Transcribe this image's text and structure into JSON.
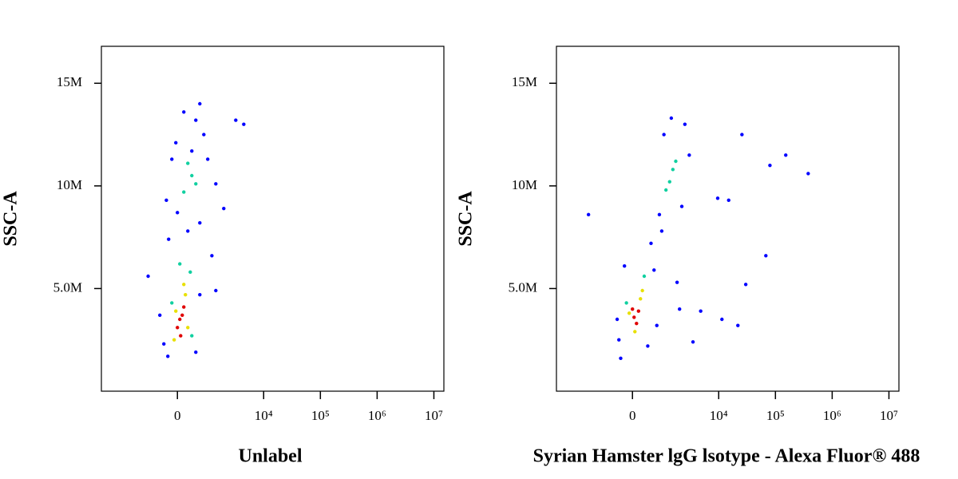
{
  "chart_data": [
    {
      "type": "scatter",
      "xscale": "biexponential",
      "xlabel": "Unlabel",
      "ylabel": "SSC-A",
      "xlim": [
        -6600,
        15000000
      ],
      "ylim": [
        0,
        16800000
      ],
      "xticks": [
        0,
        {
          "value": 10000,
          "label": "10⁴"
        },
        {
          "value": 100000,
          "label": "10⁵"
        },
        {
          "value": 1000000,
          "label": "10⁶"
        },
        {
          "value": 10000000,
          "label": "10⁷"
        }
      ],
      "yticks": [
        {
          "value": 5000000,
          "label": "5.0M"
        },
        {
          "value": 10000000,
          "label": "10M"
        },
        {
          "value": 15000000,
          "label": "15M"
        }
      ],
      "series": [
        {
          "color": "#0000ff",
          "x": [
            -350,
            -469,
            495,
            -241,
            629,
            -220,
            629,
            -39,
            780,
            159,
            495,
            -138,
            947,
            1373,
            1938,
            1150,
            -280,
            263,
            629,
            3200,
            4446,
            -900,
            1373,
            0,
            374
          ],
          "y": [
            2300000,
            3700000,
            1900000,
            1700000,
            4700000,
            7400000,
            8200000,
            12100000,
            12500000,
            13600000,
            13200000,
            11300000,
            11300000,
            10100000,
            8900000,
            6600000,
            9300000,
            7800000,
            14000000,
            13200000,
            13000000,
            5600000,
            4900000,
            8700000,
            11700000
          ]
        },
        {
          "color": "#10d0a0",
          "x": [
            330,
            -138,
            374,
            59,
            374,
            263,
            495,
            159
          ],
          "y": [
            5800000,
            4300000,
            2700000,
            6200000,
            10500000,
            11100000,
            10100000,
            9700000
          ]
        },
        {
          "color": "#e8e000",
          "x": [
            200,
            -39,
            263,
            -80,
            159
          ],
          "y": [
            4700000,
            3900000,
            3100000,
            2500000,
            5200000
          ]
        },
        {
          "color": "#e00000",
          "x": [
            59,
            119,
            0,
            159,
            80
          ],
          "y": [
            3500000,
            3700000,
            3100000,
            4100000,
            2700000
          ]
        }
      ]
    },
    {
      "type": "scatter",
      "xscale": "biexponential",
      "xlabel": "Syrian Hamster lgG lsotype - Alexa Fluor® 488",
      "ylabel": "SSC-A",
      "xlim": [
        -6600,
        15000000
      ],
      "ylim": [
        0,
        16800000
      ],
      "xticks": [
        0,
        {
          "value": 10000,
          "label": "10⁴"
        },
        {
          "value": 100000,
          "label": "10⁵"
        },
        {
          "value": 1000000,
          "label": "10⁶"
        },
        {
          "value": 10000000,
          "label": "10⁷"
        }
      ],
      "yticks": [
        {
          "value": 5000000,
          "label": "5.0M"
        },
        {
          "value": 10000000,
          "label": "10M"
        },
        {
          "value": 15000000,
          "label": "15M"
        }
      ],
      "series": [
        {
          "color": "#0000ff",
          "x": [
            -350,
            400,
            -400,
            600,
            500,
            800,
            1000,
            1400,
            2500,
            2200,
            3000,
            900,
            -200,
            700,
            2000,
            4800,
            11400,
            21800,
            30000,
            67800,
            25700,
            80000,
            152000,
            378000,
            9600,
            -1750,
            15000,
            1800,
            3500,
            -300
          ],
          "y": [
            2500000,
            2200000,
            3500000,
            5900000,
            7200000,
            8600000,
            12500000,
            13300000,
            13000000,
            9000000,
            11500000,
            7800000,
            6100000,
            3200000,
            4000000,
            3900000,
            3500000,
            3200000,
            5200000,
            6600000,
            12500000,
            11000000,
            11500000,
            10600000,
            9400000,
            8600000,
            9300000,
            5300000,
            2400000,
            1600000
          ]
        },
        {
          "color": "#10d0a0",
          "x": [
            300,
            -150,
            1300,
            1500,
            1100,
            1700
          ],
          "y": [
            5600000,
            4300000,
            10200000,
            10800000,
            9800000,
            11200000
          ]
        },
        {
          "color": "#e8e000",
          "x": [
            -80,
            200,
            60,
            250
          ],
          "y": [
            3800000,
            4500000,
            2900000,
            4900000
          ]
        },
        {
          "color": "#e00000",
          "x": [
            40,
            100,
            0,
            150
          ],
          "y": [
            3600000,
            3300000,
            4000000,
            3900000
          ]
        }
      ]
    }
  ]
}
